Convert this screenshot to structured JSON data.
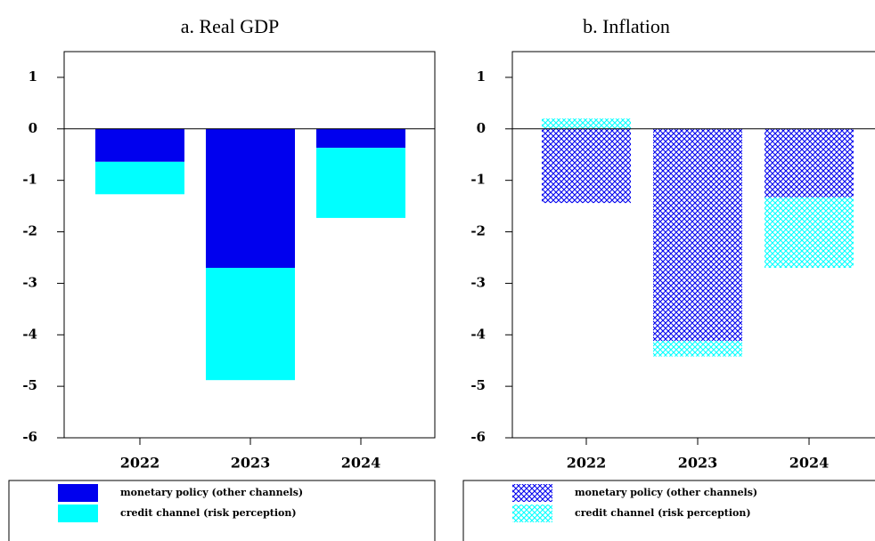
{
  "chart_data": [
    {
      "type": "bar",
      "stacked": true,
      "title": "a.  Real GDP",
      "hatch": false,
      "categories": [
        "2022",
        "2023",
        "2024"
      ],
      "series": [
        {
          "name": "monetary policy (other channels)",
          "color": "#0000ee",
          "values": [
            -0.64,
            -2.7,
            -0.37
          ]
        },
        {
          "name": "credit channel (risk perception)",
          "color": "#00ffff",
          "values": [
            -0.63,
            -2.18,
            -1.36
          ]
        }
      ],
      "ylim": [
        -6,
        1.5
      ],
      "yticks": [
        -6,
        -5,
        -4,
        -3,
        -2,
        -1,
        0,
        1
      ]
    },
    {
      "type": "bar",
      "stacked": true,
      "title": "b.       Inflation",
      "hatch": true,
      "categories": [
        "2022",
        "2023",
        "2024"
      ],
      "series": [
        {
          "name": "monetary policy (other channels)",
          "color": "#0000ee",
          "values": [
            -1.44,
            -4.12,
            -1.33
          ]
        },
        {
          "name": "credit channel (risk perception)",
          "color": "#00ffff",
          "values": [
            0.2,
            -0.3,
            -1.37
          ]
        }
      ],
      "ylim": [
        -6,
        1.5
      ],
      "yticks": [
        -6,
        -5,
        -4,
        -3,
        -2,
        -1,
        0,
        1
      ]
    }
  ]
}
